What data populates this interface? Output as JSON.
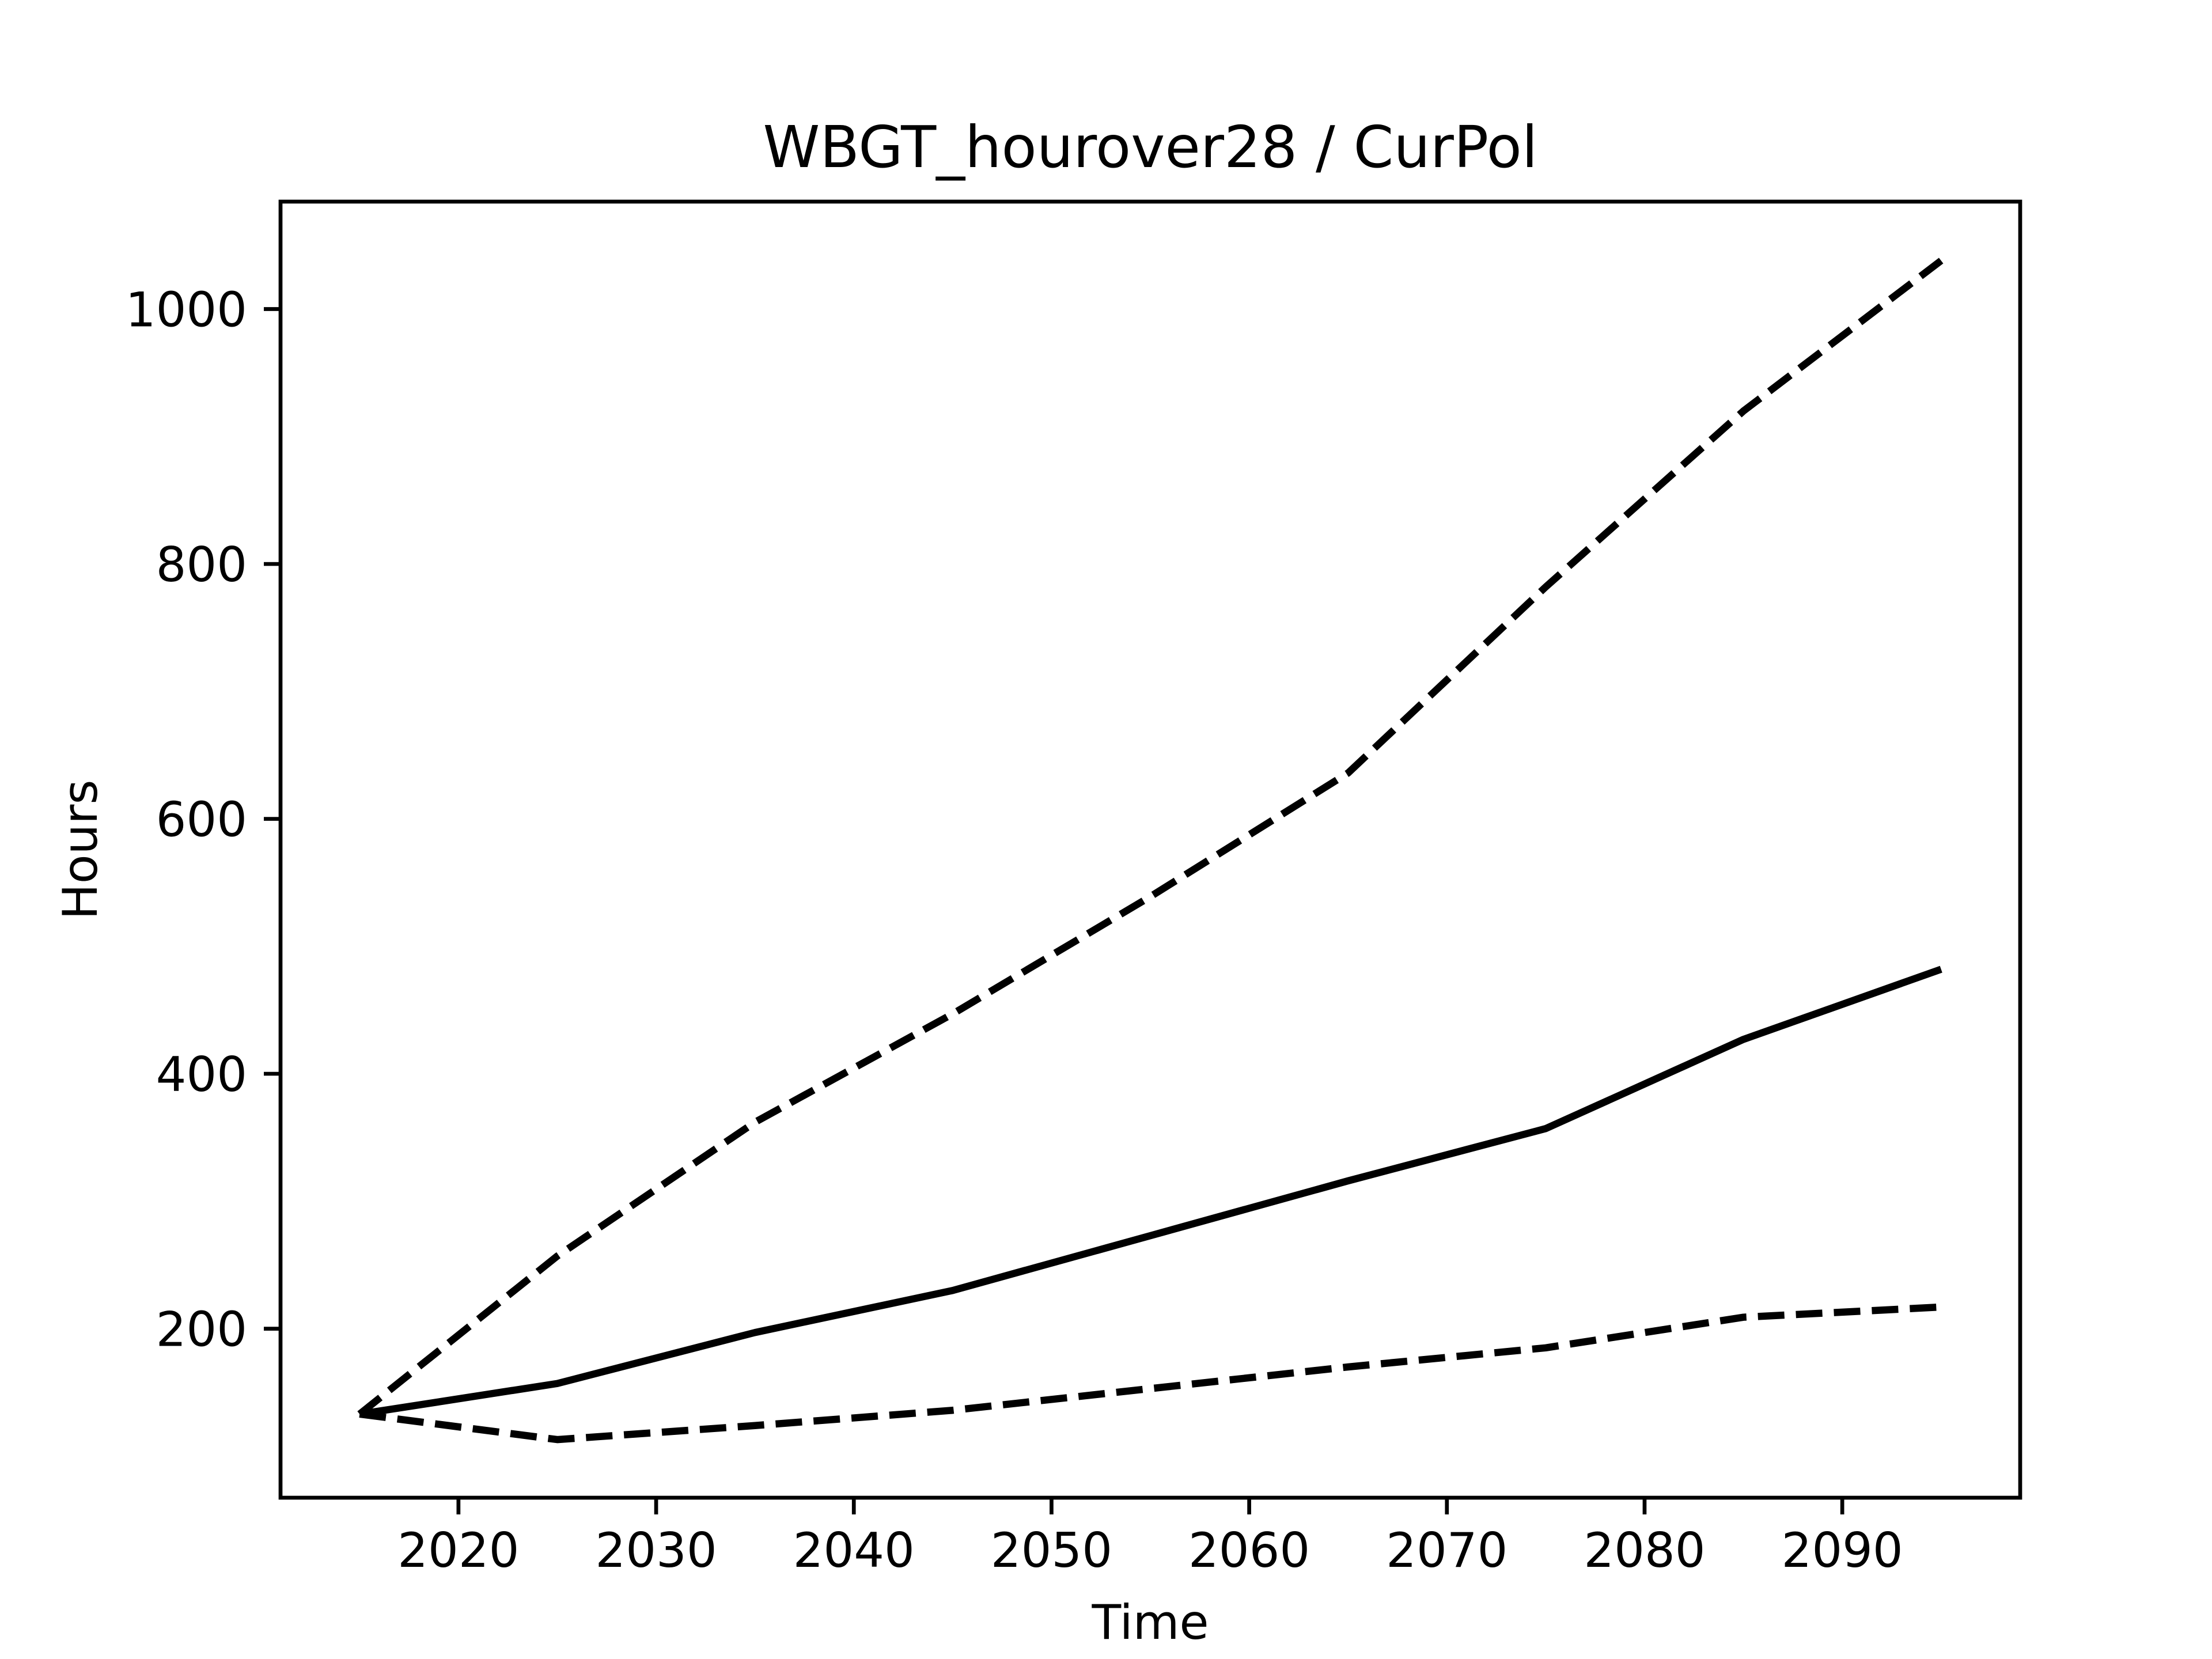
{
  "chart_data": {
    "type": "line",
    "title": "WBGT_hourover28 / CurPol",
    "x_label": "Time",
    "y_label": "Hours",
    "x": [
      2015,
      2025,
      2035,
      2045,
      2055,
      2065,
      2075,
      2085,
      2095
    ],
    "series": [
      {
        "color": "#000000",
        "linestyle": "dashed",
        "values": [
          133,
          257,
          362,
          447,
          539,
          636,
          782,
          920,
          1038
        ]
      },
      {
        "color": "#000000",
        "linestyle": "solid",
        "values": [
          133,
          157,
          197,
          230,
          273,
          316,
          357,
          427,
          482
        ]
      },
      {
        "color": "#000000",
        "linestyle": "dashed",
        "values": [
          133,
          113,
          124,
          136,
          153,
          170,
          185,
          209,
          217
        ]
      }
    ],
    "xlim": [
      2011,
      2099
    ],
    "xticks": [
      2020,
      2030,
      2040,
      2050,
      2060,
      2070,
      2080,
      2090
    ],
    "ylim": [
      67.4,
      1084.3
    ],
    "yticks": [
      200,
      400,
      600,
      800,
      1000
    ],
    "grid": false
  }
}
